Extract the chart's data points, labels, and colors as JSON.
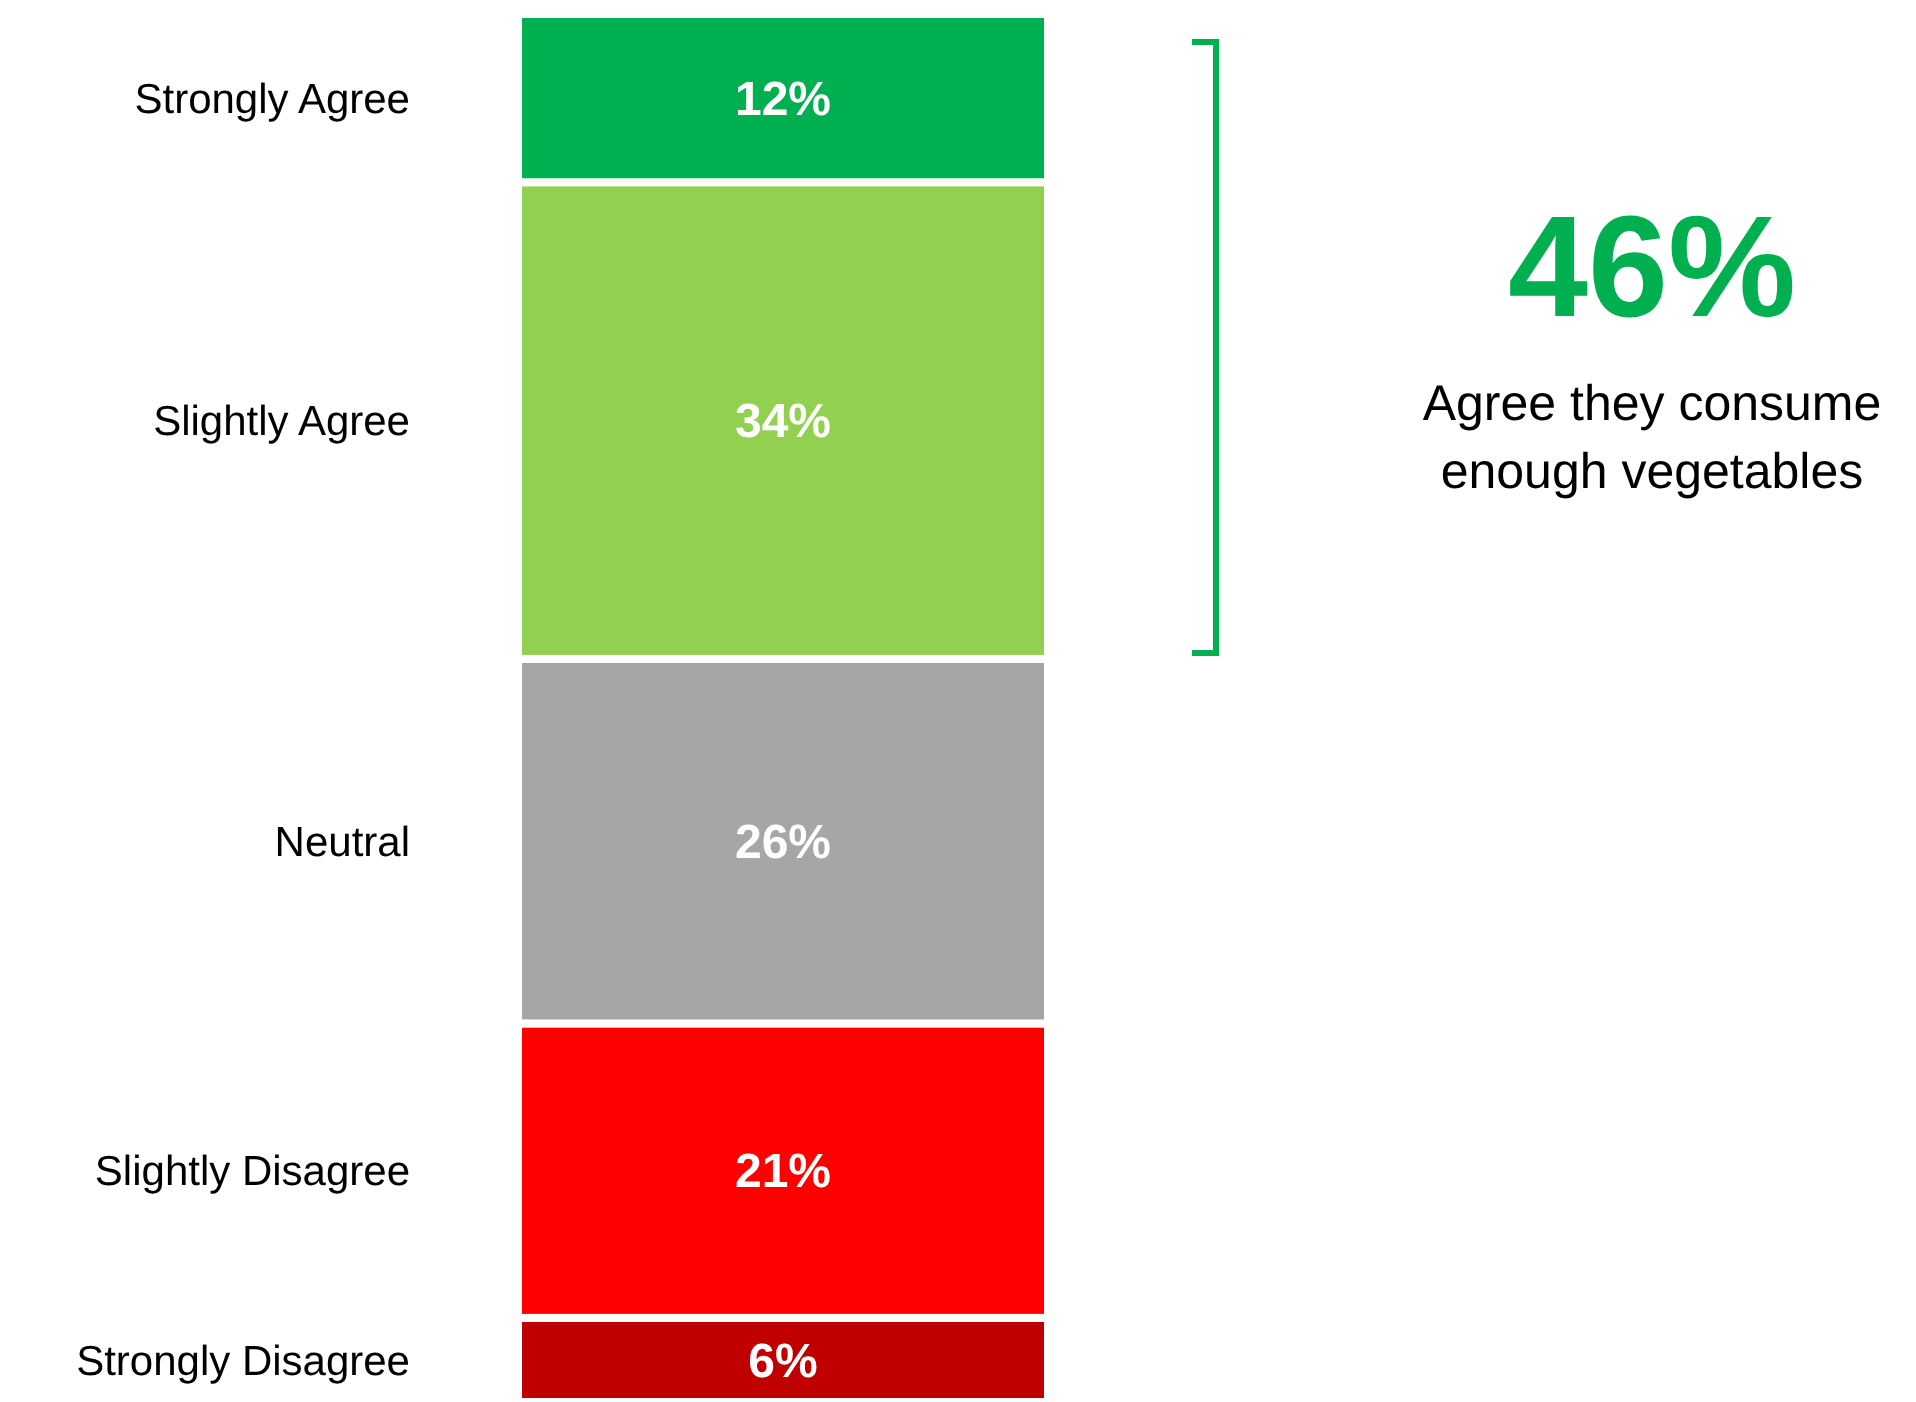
{
  "chart_data": {
    "type": "bar",
    "stacked": true,
    "categories": [
      null
    ],
    "series": [
      {
        "name": "Strongly Disagree",
        "color": "#c00000",
        "values": [
          6
        ],
        "value_labels": [
          "6%"
        ]
      },
      {
        "name": "Slightly Disagree",
        "color": "#ff0000",
        "values": [
          21
        ],
        "value_labels": [
          "21%"
        ]
      },
      {
        "name": "Neutral",
        "color": "#a6a6a6",
        "values": [
          26
        ],
        "value_labels": [
          "26%"
        ]
      },
      {
        "name": "Slightly Agree",
        "color": "#92d050",
        "values": [
          34
        ],
        "value_labels": [
          "34%"
        ]
      },
      {
        "name": "Strongly Agree",
        "color": "#00b050",
        "values": [
          12
        ],
        "value_labels": [
          "12%"
        ]
      }
    ],
    "annotations": [
      "46%",
      "Agree they consume enough vegetables"
    ]
  }
}
